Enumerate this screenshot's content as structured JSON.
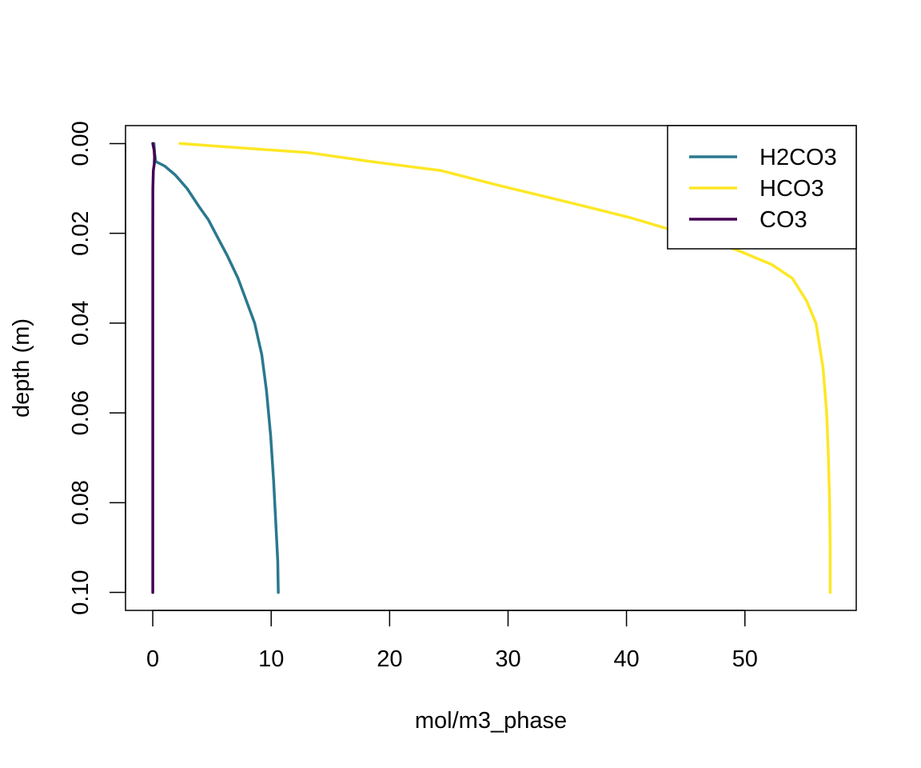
{
  "chart_data": {
    "type": "line",
    "title": "",
    "xlabel": "mol/m3_phase",
    "ylabel": "depth (m)",
    "xlim": [
      -2.3,
      59.4
    ],
    "ylim": [
      0.104,
      -0.004
    ],
    "y_reversed": true,
    "x_ticks": [
      0,
      10,
      20,
      30,
      40,
      50
    ],
    "x_tick_labels": [
      "0",
      "10",
      "20",
      "30",
      "40",
      "50"
    ],
    "y_ticks": [
      0.0,
      0.02,
      0.04,
      0.06,
      0.08,
      0.1
    ],
    "y_tick_labels": [
      "0.00",
      "0.02",
      "0.04",
      "0.06",
      "0.08",
      "0.10"
    ],
    "grid": false,
    "legend_position": "top-right",
    "series": [
      {
        "name": "H2CO3",
        "color": "#2a788e",
        "points": [
          [
            0.1,
            0.0
          ],
          [
            0.15,
            0.002
          ],
          [
            0.25,
            0.004
          ],
          [
            1.0,
            0.005
          ],
          [
            1.9,
            0.007
          ],
          [
            2.9,
            0.01
          ],
          [
            3.9,
            0.014
          ],
          [
            4.7,
            0.017
          ],
          [
            5.5,
            0.021
          ],
          [
            6.3,
            0.025
          ],
          [
            7.2,
            0.03
          ],
          [
            7.9,
            0.035
          ],
          [
            8.6,
            0.04
          ],
          [
            9.2,
            0.047
          ],
          [
            9.6,
            0.055
          ],
          [
            9.95,
            0.065
          ],
          [
            10.2,
            0.075
          ],
          [
            10.4,
            0.085
          ],
          [
            10.55,
            0.093
          ],
          [
            10.6,
            0.1
          ]
        ]
      },
      {
        "name": "HCO3",
        "color": "#fde725",
        "points": [
          [
            2.3,
            0.0
          ],
          [
            7.7,
            0.001
          ],
          [
            13.1,
            0.002
          ],
          [
            18.4,
            0.004
          ],
          [
            24.3,
            0.006
          ],
          [
            29.5,
            0.0095
          ],
          [
            35.0,
            0.013
          ],
          [
            40.3,
            0.0165
          ],
          [
            43.5,
            0.019
          ],
          [
            46.5,
            0.021
          ],
          [
            49.6,
            0.024
          ],
          [
            52.3,
            0.027
          ],
          [
            54.0,
            0.03
          ],
          [
            55.2,
            0.035
          ],
          [
            56.0,
            0.04
          ],
          [
            56.6,
            0.05
          ],
          [
            56.9,
            0.06
          ],
          [
            57.05,
            0.07
          ],
          [
            57.15,
            0.08
          ],
          [
            57.2,
            0.09
          ],
          [
            57.2,
            0.1
          ]
        ]
      },
      {
        "name": "CO3",
        "color": "#440154",
        "points": [
          [
            0.0,
            0.0
          ],
          [
            0.12,
            0.0015
          ],
          [
            0.15,
            0.003
          ],
          [
            0.13,
            0.0045
          ],
          [
            0.05,
            0.006
          ],
          [
            0.01,
            0.01
          ],
          [
            0.0,
            0.02
          ],
          [
            0.0,
            0.05
          ],
          [
            0.0,
            0.1
          ]
        ]
      }
    ]
  }
}
